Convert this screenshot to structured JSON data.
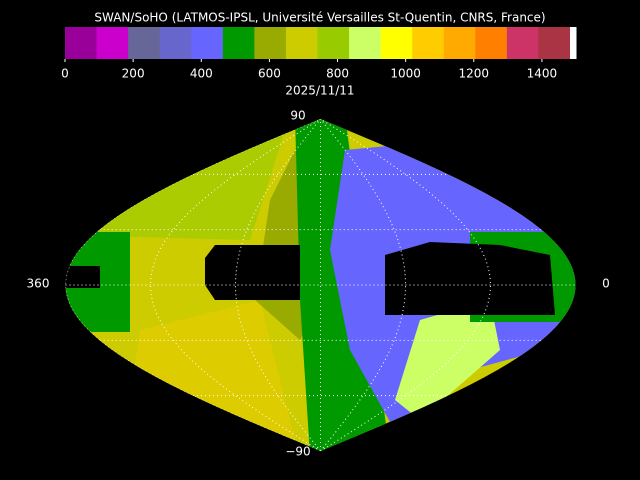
{
  "header": {
    "title": "SWAN/SoHO (LATMOS-IPSL, Université Versailles St-Quentin, CNRS, France)",
    "date": "2025/11/11"
  },
  "colorbar": {
    "lim": [
      0,
      1500
    ],
    "ticks": [
      0,
      200,
      400,
      600,
      800,
      1000,
      1200,
      1400
    ],
    "colors": [
      "#990099",
      "#cc00cc",
      "#666699",
      "#6666cc",
      "#6666ff",
      "#009900",
      "#99aa00",
      "#cccc00",
      "#99cc00",
      "#ccff66",
      "#ffff00",
      "#ffcc00",
      "#ffaa00",
      "#ff8000",
      "#cc3366",
      "#aa3344",
      "#ffffff"
    ]
  },
  "map": {
    "top_label": "90",
    "bottom_label": "−90",
    "left_label": "360",
    "right_label": "0"
  }
}
